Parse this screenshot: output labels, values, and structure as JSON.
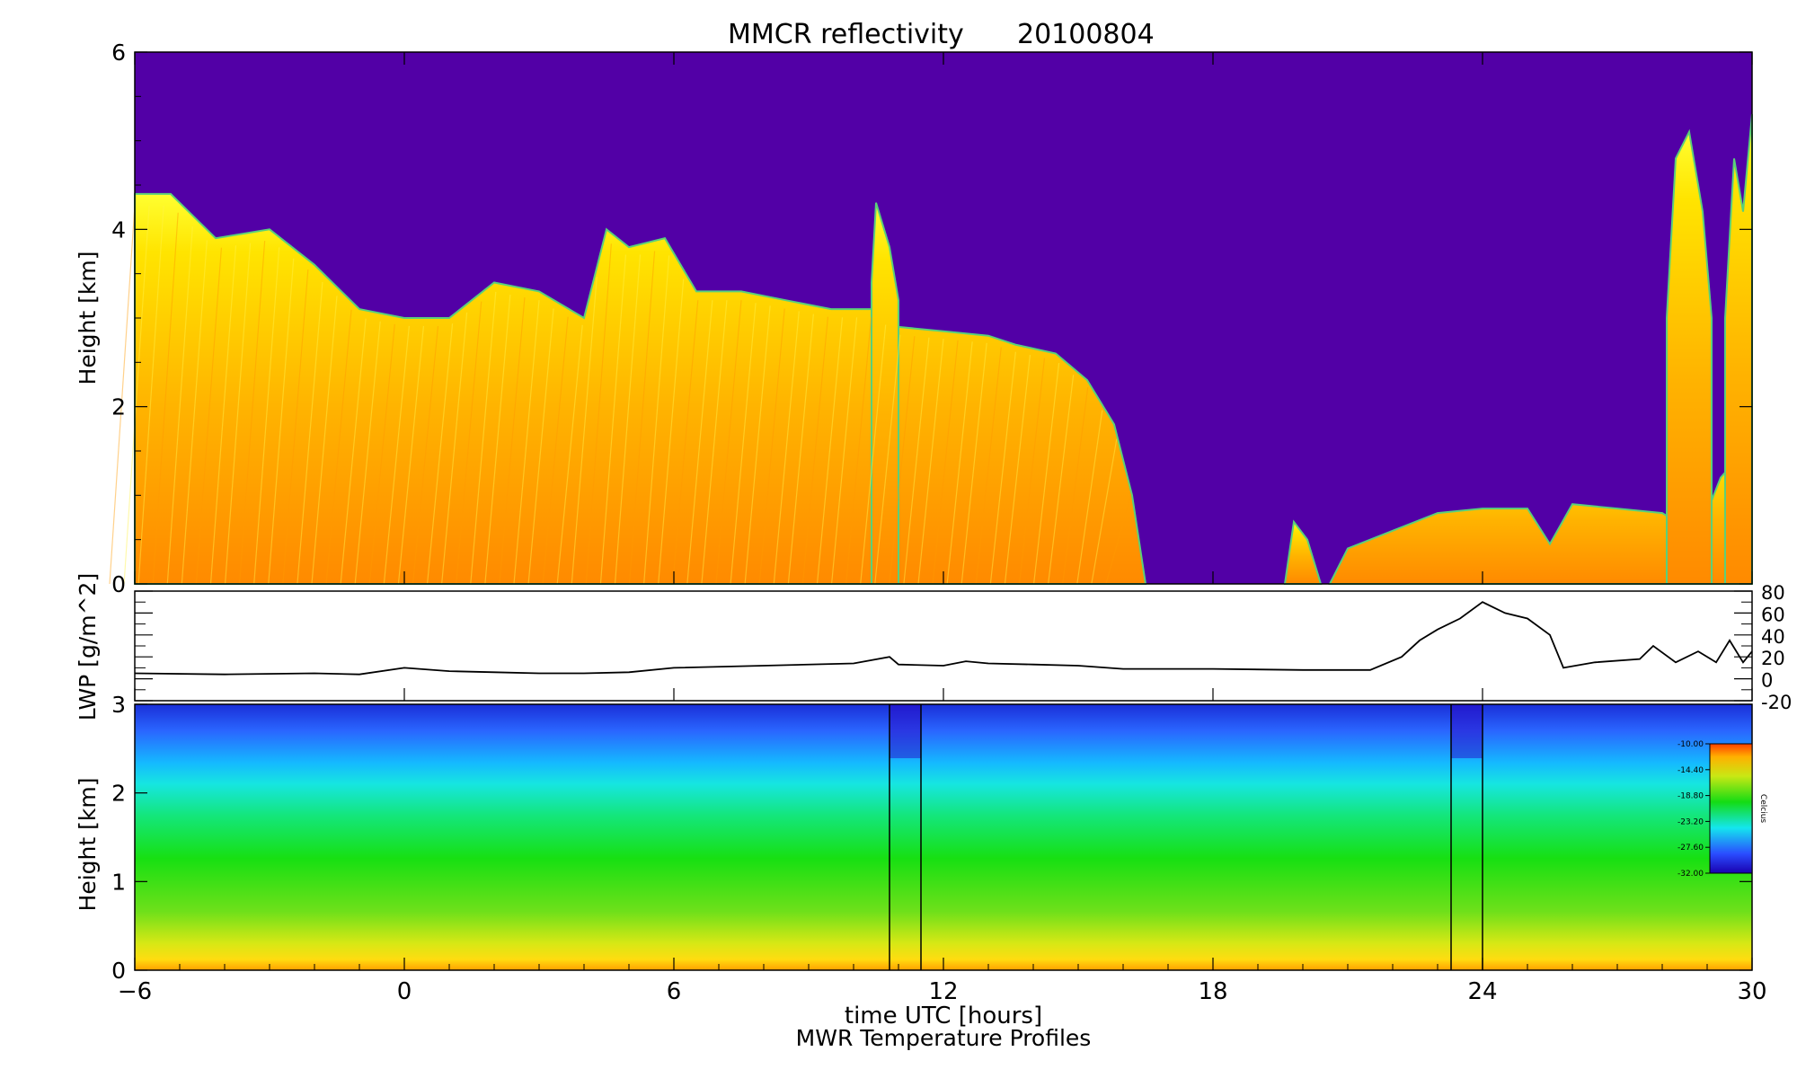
{
  "figure": {
    "title": "MMCR reflectivity",
    "date": "20100804",
    "xlabel": "time UTC [hours]",
    "bottom_title": "MWR Temperature Profiles"
  },
  "chart_data": [
    {
      "type": "heatmap",
      "title": "MMCR reflectivity",
      "ylabel": "Height [km]",
      "xlim": [
        -6,
        30
      ],
      "ylim": [
        0,
        6
      ],
      "x_ticks": [
        -6,
        0,
        6,
        12,
        18,
        24,
        30
      ],
      "y_ticks": [
        0,
        2,
        4,
        6
      ],
      "background_color": "#5200a6",
      "colors": {
        "low": "#ffff00",
        "mid": "#ffd000",
        "high": "#ff8c00",
        "edge": "#5ad07a"
      },
      "cloud_segments": [
        {
          "x": [
            -6,
            -5.2,
            -4.2,
            -3.0,
            -2.0,
            -1.0,
            0.0,
            1.0,
            2.0,
            3.0,
            4.0,
            4.5,
            5.0,
            5.8,
            6.5,
            7.5,
            8.5,
            9.5,
            10.5,
            11.0,
            12.0,
            13.0,
            13.6,
            14.5,
            15.2,
            15.8,
            16.2,
            16.5
          ],
          "top": [
            4.4,
            4.4,
            3.9,
            4.0,
            3.6,
            3.1,
            3.0,
            3.0,
            3.4,
            3.3,
            3.0,
            4.0,
            3.8,
            3.9,
            3.3,
            3.3,
            3.2,
            3.1,
            3.1,
            2.9,
            2.85,
            2.8,
            2.7,
            2.6,
            2.3,
            1.8,
            1.0,
            0.0
          ]
        },
        {
          "x": [
            19.6,
            19.8,
            20.1,
            20.4
          ],
          "top": [
            0,
            0.7,
            0.5,
            0
          ]
        },
        {
          "x": [
            20.6,
            21.0,
            22.0,
            23.0,
            24.0,
            25.0,
            25.5,
            26.0,
            27.0,
            28.0,
            28.8,
            29.3,
            30.0
          ],
          "top": [
            0,
            0.4,
            0.6,
            0.8,
            0.85,
            0.85,
            0.45,
            0.9,
            0.85,
            0.8,
            0.55,
            1.2,
            1.6
          ]
        },
        {
          "x": [
            28.1,
            28.3,
            28.6,
            28.9,
            29.1
          ],
          "top": [
            3.0,
            4.8,
            5.1,
            4.2,
            3.0
          ]
        },
        {
          "x": [
            29.4,
            29.6,
            29.8,
            30.0
          ],
          "top": [
            3.0,
            4.8,
            4.2,
            5.3
          ]
        },
        {
          "x": [
            10.4,
            10.5,
            10.8,
            11.0
          ],
          "top": [
            3.4,
            4.3,
            3.8,
            3.2
          ]
        }
      ]
    },
    {
      "type": "line",
      "ylabel": "LWP [g/m^2]",
      "xlim": [
        -6,
        30
      ],
      "ylim": [
        -20,
        80
      ],
      "y_ticks": [
        -20,
        0,
        20,
        40,
        60,
        80
      ],
      "series": [
        {
          "x": [
            -6,
            -4,
            -2,
            -1,
            0,
            1,
            2,
            3,
            4,
            5,
            6,
            8,
            10,
            10.8,
            11,
            12,
            12.5,
            13,
            14,
            15,
            16,
            18,
            20,
            21.5,
            22.2,
            22.6,
            23,
            23.5,
            24,
            24.5,
            25,
            25.5,
            25.8,
            26.5,
            27.5,
            27.8,
            28.3,
            28.8,
            29.2,
            29.5,
            29.8,
            30
          ],
          "values": [
            5,
            4,
            5,
            4,
            10,
            7,
            6,
            5,
            5,
            6,
            10,
            12,
            14,
            20,
            13,
            12,
            16,
            14,
            13,
            12,
            9,
            9,
            8,
            8,
            20,
            35,
            45,
            55,
            70,
            60,
            55,
            40,
            10,
            15,
            18,
            30,
            15,
            25,
            15,
            35,
            15,
            25
          ]
        }
      ]
    },
    {
      "type": "heatmap",
      "title": "MWR Temperature Profiles",
      "ylabel": "Height [km]",
      "xlim": [
        -6,
        30
      ],
      "ylim": [
        0,
        3
      ],
      "y_ticks": [
        0,
        1,
        2,
        3
      ],
      "colorbar": {
        "label": "Celcius",
        "ticks": [
          "-10.00",
          "-14.40",
          "-18.80",
          "-23.20",
          "-27.60",
          "-32.00"
        ]
      },
      "gaps": [
        [
          10.8,
          11.5
        ],
        [
          23.3,
          24.0
        ]
      ]
    }
  ]
}
